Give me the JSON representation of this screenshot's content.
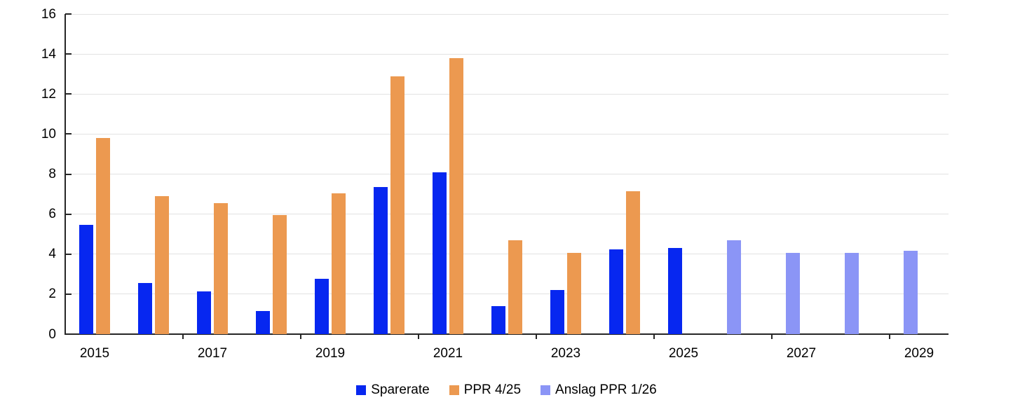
{
  "chart_data": {
    "type": "bar",
    "title": "",
    "xlabel": "",
    "ylabel": "",
    "categories": [
      "2015",
      "2016",
      "2017",
      "2018",
      "2019",
      "2020",
      "2021",
      "2022",
      "2023",
      "2024",
      "2025",
      "2026",
      "2027",
      "2028",
      "2029"
    ],
    "series": [
      {
        "name": "Sparerate",
        "color": "#0727F0",
        "slot": 0,
        "values": [
          5.45,
          2.55,
          2.15,
          1.15,
          2.75,
          7.35,
          8.1,
          1.4,
          2.2,
          4.25,
          4.3,
          null,
          null,
          null,
          null
        ]
      },
      {
        "name": "PPR 4/25",
        "color": "#EC9950",
        "slot": 1,
        "values": [
          9.8,
          6.9,
          6.55,
          5.95,
          7.05,
          12.9,
          13.8,
          4.7,
          4.05,
          7.15,
          null,
          null,
          null,
          null,
          null
        ]
      },
      {
        "name": "Anslag PPR 1/26",
        "color": "#8B95F6",
        "slot": 0,
        "values": [
          null,
          null,
          null,
          null,
          null,
          null,
          null,
          null,
          null,
          null,
          null,
          4.7,
          4.05,
          4.05,
          4.15
        ]
      }
    ],
    "ylim": [
      0,
      16
    ],
    "yticks": [
      0,
      2,
      4,
      6,
      8,
      10,
      12,
      14,
      16
    ],
    "xtick_labels": [
      "2015",
      "2017",
      "2019",
      "2021",
      "2023",
      "2025",
      "2027",
      "2029"
    ],
    "xtick_label_interval": 2,
    "grid": true,
    "legend_position": "bottom-center"
  },
  "colors": {
    "background": "#FFFFFF",
    "gridline": "#E2E2E2",
    "axis": "#262626",
    "text": "#000000"
  }
}
